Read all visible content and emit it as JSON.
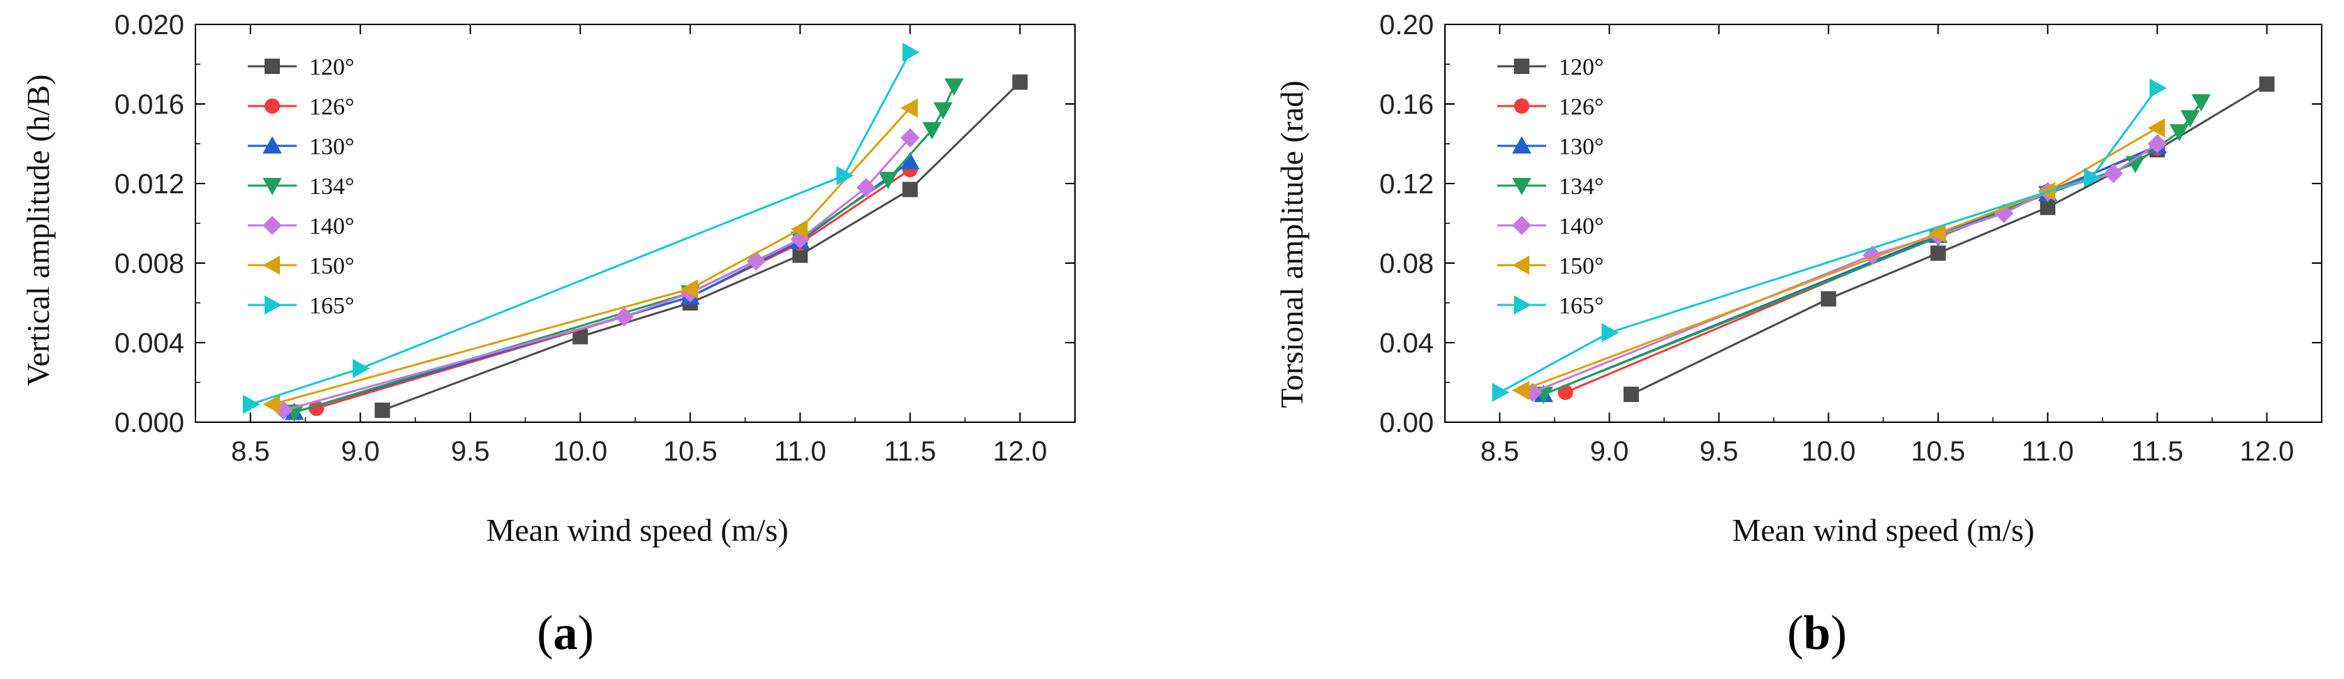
{
  "figure": {
    "panels": [
      {
        "caption_open": "(",
        "caption_letter": "a",
        "caption_close": ")"
      },
      {
        "caption_open": "(",
        "caption_letter": "b",
        "caption_close": ")"
      }
    ]
  },
  "series_style": [
    {
      "name": "120°",
      "color": "#4d4d4d",
      "marker": "square"
    },
    {
      "name": "126°",
      "color": "#f03c3c",
      "marker": "circle"
    },
    {
      "name": "130°",
      "color": "#1f5fd6",
      "marker": "triangle-up"
    },
    {
      "name": "134°",
      "color": "#1fa05a",
      "marker": "triangle-down"
    },
    {
      "name": "140°",
      "color": "#c678e0",
      "marker": "diamond"
    },
    {
      "name": "150°",
      "color": "#d9a010",
      "marker": "triangle-left"
    },
    {
      "name": "165°",
      "color": "#18c8d0",
      "marker": "triangle-right"
    }
  ],
  "chart_data": [
    {
      "type": "line",
      "title": "",
      "xlabel": "Mean wind speed (m/s)",
      "ylabel": "Vertical amplitude (h/B)",
      "xlim": [
        8.25,
        12.25
      ],
      "ylim": [
        0.0,
        0.02
      ],
      "xticks": [
        "8.5",
        "9.0",
        "9.5",
        "10.0",
        "10.5",
        "11.0",
        "11.5",
        "12.0"
      ],
      "yticks": [
        "0.000",
        "0.004",
        "0.008",
        "0.012",
        "0.016",
        "0.020"
      ],
      "legend": "top-left",
      "series": [
        {
          "name": "120°",
          "x": [
            9.1,
            10.0,
            10.5,
            11.0,
            11.5,
            12.0
          ],
          "y": [
            0.0006,
            0.0043,
            0.006,
            0.0084,
            0.0117,
            0.0171
          ]
        },
        {
          "name": "126°",
          "x": [
            8.8,
            10.5,
            11.0,
            11.5
          ],
          "y": [
            0.0007,
            0.0063,
            0.009,
            0.0127
          ]
        },
        {
          "name": "130°",
          "x": [
            8.7,
            10.5,
            11.0,
            11.5
          ],
          "y": [
            0.0005,
            0.0063,
            0.0091,
            0.0131
          ]
        },
        {
          "name": "134°",
          "x": [
            8.7,
            10.5,
            11.0,
            11.4,
            11.6,
            11.65,
            11.7
          ],
          "y": [
            0.0005,
            0.0065,
            0.0092,
            0.0122,
            0.0147,
            0.0157,
            0.0169
          ]
        },
        {
          "name": "140°",
          "x": [
            8.65,
            10.2,
            10.5,
            10.8,
            11.0,
            11.3,
            11.5
          ],
          "y": [
            0.0006,
            0.0053,
            0.0065,
            0.0081,
            0.0092,
            0.0118,
            0.0143
          ]
        },
        {
          "name": "150°",
          "x": [
            8.6,
            10.5,
            11.0,
            11.5
          ],
          "y": [
            0.0009,
            0.0067,
            0.0097,
            0.0158
          ]
        },
        {
          "name": "165°",
          "x": [
            8.5,
            9.0,
            11.2,
            11.5
          ],
          "y": [
            0.0009,
            0.0027,
            0.0124,
            0.0186
          ]
        }
      ]
    },
    {
      "type": "line",
      "title": "",
      "xlabel": "Mean wind speed (m/s)",
      "ylabel": "Torsional amplitude (rad)",
      "xlim": [
        8.25,
        12.25
      ],
      "ylim": [
        0.0,
        0.2
      ],
      "xticks": [
        "8.5",
        "9.0",
        "9.5",
        "10.0",
        "10.5",
        "11.0",
        "11.5",
        "12.0"
      ],
      "yticks": [
        "0.00",
        "0.04",
        "0.08",
        "0.12",
        "0.16",
        "0.20"
      ],
      "legend": "top-left",
      "series": [
        {
          "name": "120°",
          "x": [
            9.1,
            10.0,
            10.5,
            11.0,
            11.5,
            12.0
          ],
          "y": [
            0.014,
            0.062,
            0.085,
            0.108,
            0.137,
            0.17
          ]
        },
        {
          "name": "126°",
          "x": [
            8.8,
            10.5,
            11.0,
            11.5
          ],
          "y": [
            0.015,
            0.094,
            0.116,
            0.138
          ]
        },
        {
          "name": "130°",
          "x": [
            8.7,
            10.5,
            11.0,
            11.5
          ],
          "y": [
            0.014,
            0.094,
            0.115,
            0.139
          ]
        },
        {
          "name": "134°",
          "x": [
            8.7,
            10.5,
            11.0,
            11.4,
            11.6,
            11.65,
            11.7
          ],
          "y": [
            0.014,
            0.093,
            0.115,
            0.13,
            0.146,
            0.153,
            0.161
          ]
        },
        {
          "name": "140°",
          "x": [
            8.65,
            10.2,
            10.5,
            10.8,
            11.0,
            11.3,
            11.5
          ],
          "y": [
            0.015,
            0.084,
            0.094,
            0.105,
            0.116,
            0.125,
            0.14
          ]
        },
        {
          "name": "150°",
          "x": [
            8.6,
            10.5,
            11.0,
            11.5
          ],
          "y": [
            0.016,
            0.095,
            0.116,
            0.148
          ]
        },
        {
          "name": "165°",
          "x": [
            8.5,
            9.0,
            11.2,
            11.5
          ],
          "y": [
            0.015,
            0.045,
            0.123,
            0.168
          ]
        }
      ]
    }
  ]
}
